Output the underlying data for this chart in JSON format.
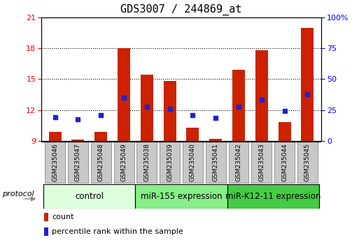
{
  "title": "GDS3007 / 244869_at",
  "samples": [
    "GSM235046",
    "GSM235047",
    "GSM235048",
    "GSM235049",
    "GSM235038",
    "GSM235039",
    "GSM235040",
    "GSM235041",
    "GSM235042",
    "GSM235043",
    "GSM235044",
    "GSM235045"
  ],
  "bar_values": [
    9.9,
    9.1,
    9.9,
    18.0,
    15.4,
    14.8,
    10.3,
    9.2,
    15.9,
    17.8,
    10.8,
    20.0
  ],
  "bar_bottom": 9.0,
  "blue_values": [
    11.3,
    11.1,
    11.5,
    13.2,
    12.3,
    12.1,
    11.5,
    11.2,
    12.3,
    13.0,
    11.9,
    13.5
  ],
  "ylim": [
    9,
    21
  ],
  "yticks_left": [
    9,
    12,
    15,
    18,
    21
  ],
  "yticks_right": [
    0,
    25,
    50,
    75,
    100
  ],
  "yticks_right_vals": [
    9,
    12,
    15,
    18,
    21
  ],
  "bar_color": "#cc2200",
  "blue_color": "#2222cc",
  "bg_sample": "#c8c8c8",
  "bg_control": "#ddffdd",
  "bg_mir155": "#88ee88",
  "bg_mirk12": "#44cc44",
  "groups": [
    {
      "label": "control",
      "start": 0,
      "end": 4
    },
    {
      "label": "miR-155 expression",
      "start": 4,
      "end": 8
    },
    {
      "label": "miR-K12-11 expression",
      "start": 8,
      "end": 12
    }
  ],
  "legend_items": [
    {
      "color": "#cc2200",
      "label": "count"
    },
    {
      "color": "#2222cc",
      "label": "percentile rank within the sample"
    }
  ],
  "protocol_label": "protocol",
  "title_fontsize": 11,
  "tick_fontsize": 8,
  "sample_fontsize": 6.5,
  "group_fontsize": 8.5,
  "legend_fontsize": 8
}
